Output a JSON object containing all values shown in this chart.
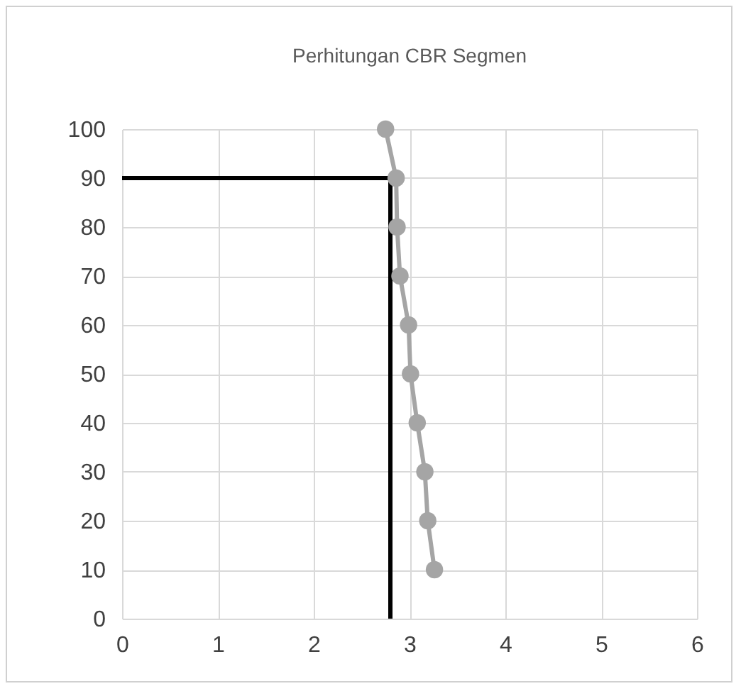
{
  "chart_data": {
    "type": "line",
    "title": "Perhitungan CBR Segmen",
    "xlim": [
      0,
      6
    ],
    "xticks": [
      0,
      1,
      2,
      3,
      4,
      5,
      6
    ],
    "ylim": [
      0,
      100
    ],
    "yticks": [
      0,
      10,
      20,
      30,
      40,
      50,
      60,
      70,
      80,
      90,
      100
    ],
    "grid": true,
    "series": [
      {
        "color": "#a5a5a5",
        "marker": "circle",
        "x": [
          2.75,
          2.86,
          2.87,
          2.9,
          2.99,
          3.01,
          3.08,
          3.16,
          3.19,
          3.26
        ],
        "values": [
          100,
          90,
          80,
          70,
          60,
          50,
          40,
          30,
          20,
          10
        ]
      },
      {
        "color": "#000000",
        "marker": "none",
        "x": [
          0,
          2.8,
          2.8
        ],
        "values": [
          90,
          90,
          0
        ]
      }
    ]
  }
}
